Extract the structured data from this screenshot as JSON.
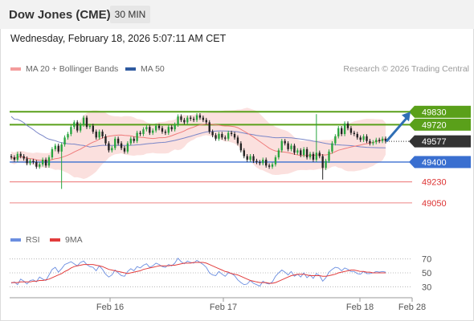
{
  "header": {
    "title": "Dow Jones (CME)",
    "timeframe": "30 MIN",
    "timestamp": "Wednesday, February 18, 2026 5:07:11 AM CET"
  },
  "legend": {
    "ma20_label": "MA 20 + Bollinger Bands",
    "ma50_label": "MA 50",
    "rsi_label": "RSI",
    "ma9_label": "9MA",
    "credit": "Research © 2026 Trading Central"
  },
  "colors": {
    "resistance": "#5aa01a",
    "support": "#3a6fd0",
    "minor_support": "#e85c5c",
    "current": "#333333",
    "up_candle": "#27a53d",
    "down_candle": "#222222",
    "bollinger_fill": "#fbe0de",
    "ma20": "#ef7b7b",
    "ma50": "#7a86c8",
    "rsi": "#6b8ee0",
    "rsi_ma": "#e23c3c",
    "arrow": "#2f6fb5"
  },
  "chart_data": [
    {
      "type": "candlestick",
      "title": "Dow Jones (CME)",
      "x_tick_labels": [
        "Feb 16",
        "Feb 17",
        "Feb 18",
        "Feb 28"
      ],
      "ylim": [
        48850,
        50100
      ],
      "levels": [
        {
          "name": "resistance",
          "value": 49830,
          "label": "49830"
        },
        {
          "name": "resistance",
          "value": 49720,
          "label": "49720"
        },
        {
          "name": "current",
          "value": 49577,
          "label": "49577"
        },
        {
          "name": "support",
          "value": 49400,
          "label": "49400"
        },
        {
          "name": "support",
          "value": 49230,
          "label": "49230"
        },
        {
          "name": "support",
          "value": 49050,
          "label": "49050"
        }
      ],
      "series": {
        "close": [
          49440,
          49420,
          49470,
          49450,
          49430,
          49390,
          49410,
          49400,
          49360,
          49380,
          49420,
          49370,
          49440,
          49510,
          49540,
          49490,
          49550,
          49610,
          49640,
          49700,
          49740,
          49670,
          49720,
          49780,
          49700,
          49710,
          49660,
          49610,
          49660,
          49620,
          49560,
          49500,
          49520,
          49600,
          49560,
          49520,
          49490,
          49560,
          49600,
          49580,
          49650,
          49640,
          49680,
          49700,
          49650,
          49670,
          49710,
          49690,
          49660,
          49650,
          49700,
          49680,
          49720,
          49790,
          49760,
          49740,
          49780,
          49770,
          49760,
          49800,
          49780,
          49760,
          49740,
          49660,
          49630,
          49600,
          49640,
          49610,
          49600,
          49650,
          49640,
          49610,
          49560,
          49500,
          49450,
          49420,
          49450,
          49410,
          49400,
          49390,
          49420,
          49370,
          49360,
          49380,
          49440,
          49500,
          49580,
          49560,
          49510,
          49540,
          49480,
          49500,
          49460,
          49510,
          49440,
          49470,
          49420,
          49480,
          49450,
          49350,
          49410,
          49490,
          49560,
          49620,
          49690,
          49640,
          49730,
          49690,
          49650,
          49640,
          49610,
          49590,
          49620,
          49580,
          49560,
          49570,
          49590,
          49580,
          49600,
          49577
        ],
        "open": [
          49450,
          49440,
          49420,
          49470,
          49450,
          49430,
          49390,
          49410,
          49400,
          49360,
          49380,
          49420,
          49370,
          49440,
          49510,
          49540,
          49490,
          49550,
          49610,
          49640,
          49700,
          49740,
          49670,
          49720,
          49780,
          49700,
          49710,
          49660,
          49610,
          49660,
          49620,
          49560,
          49500,
          49520,
          49600,
          49560,
          49520,
          49490,
          49560,
          49600,
          49580,
          49650,
          49640,
          49680,
          49700,
          49650,
          49670,
          49710,
          49690,
          49660,
          49650,
          49700,
          49680,
          49720,
          49790,
          49760,
          49740,
          49780,
          49770,
          49760,
          49800,
          49780,
          49760,
          49740,
          49660,
          49630,
          49600,
          49640,
          49610,
          49600,
          49650,
          49640,
          49610,
          49560,
          49500,
          49450,
          49420,
          49450,
          49410,
          49400,
          49390,
          49420,
          49370,
          49360,
          49380,
          49440,
          49500,
          49580,
          49560,
          49510,
          49540,
          49480,
          49500,
          49460,
          49510,
          49440,
          49470,
          49420,
          49480,
          49450,
          49350,
          49410,
          49490,
          49560,
          49620,
          49690,
          49640,
          49730,
          49690,
          49650,
          49640,
          49610,
          49590,
          49620,
          49580,
          49560,
          49570,
          49590,
          49580,
          49600
        ]
      },
      "spikes": [
        {
          "index": 16,
          "low": 49170
        },
        {
          "index": 97,
          "high": 49810
        },
        {
          "index": 99,
          "low": 49250
        }
      ],
      "projection": {
        "from": 49577,
        "to": 49830
      }
    },
    {
      "type": "line",
      "title": "RSI",
      "y_tick_labels": [
        "70",
        "50",
        "30"
      ],
      "ylim": [
        20,
        80
      ],
      "series": [
        {
          "name": "RSI",
          "values": [
            35,
            37,
            33,
            41,
            38,
            34,
            39,
            40,
            37,
            44,
            41,
            39,
            47,
            55,
            58,
            51,
            56,
            62,
            64,
            66,
            63,
            60,
            65,
            67,
            62,
            59,
            58,
            53,
            60,
            55,
            48,
            44,
            47,
            54,
            50,
            46,
            45,
            52,
            56,
            53,
            59,
            57,
            61,
            63,
            58,
            60,
            64,
            62,
            59,
            58,
            62,
            60,
            64,
            71,
            66,
            63,
            67,
            65,
            64,
            68,
            65,
            62,
            58,
            50,
            47,
            46,
            52,
            48,
            45,
            50,
            49,
            46,
            40,
            36,
            33,
            34,
            39,
            35,
            33,
            31,
            38,
            35,
            34,
            37,
            45,
            50,
            54,
            51,
            47,
            52,
            45,
            48,
            44,
            50,
            43,
            47,
            42,
            49,
            46,
            38,
            43,
            51,
            55,
            58,
            57,
            53,
            57,
            55,
            52,
            52,
            49,
            48,
            52,
            49,
            49,
            50,
            52,
            51,
            52,
            51
          ]
        },
        {
          "name": "9MA",
          "values": [
            36,
            36,
            36,
            37,
            37,
            37,
            37,
            38,
            38,
            39,
            39,
            40,
            41,
            43,
            45,
            47,
            49,
            52,
            54,
            57,
            59,
            60,
            61,
            62,
            62,
            62,
            62,
            61,
            60,
            59,
            57,
            55,
            54,
            53,
            52,
            51,
            50,
            49,
            50,
            51,
            52,
            53,
            55,
            56,
            57,
            58,
            59,
            60,
            60,
            60,
            60,
            61,
            61,
            62,
            63,
            64,
            64,
            64,
            65,
            65,
            65,
            65,
            64,
            62,
            60,
            58,
            56,
            54,
            52,
            51,
            49,
            48,
            47,
            45,
            43,
            41,
            39,
            38,
            37,
            36,
            36,
            36,
            35,
            35,
            36,
            38,
            40,
            42,
            44,
            46,
            47,
            48,
            48,
            48,
            47,
            46,
            46,
            46,
            46,
            45,
            45,
            46,
            47,
            48,
            50,
            51,
            52,
            53,
            54,
            54,
            53,
            52,
            52,
            51,
            51,
            50,
            50,
            50,
            50,
            50
          ]
        }
      ]
    }
  ]
}
